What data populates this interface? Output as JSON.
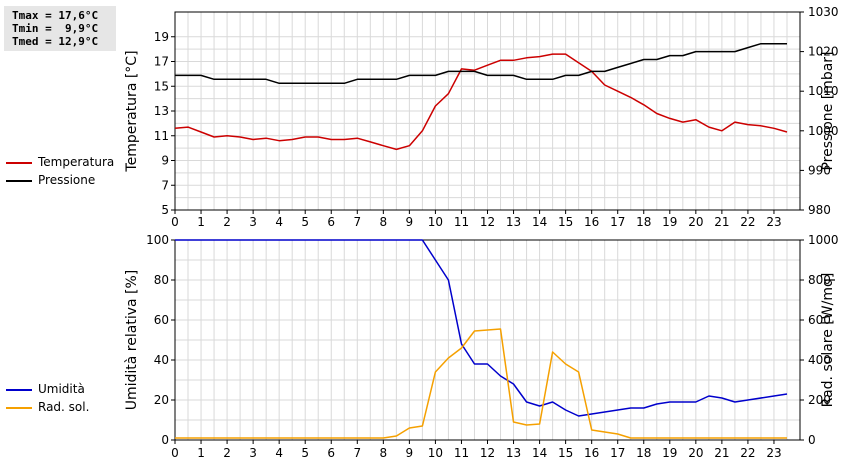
{
  "stats": [
    {
      "label": "Tmax",
      "value": "17,6°C"
    },
    {
      "label": "Tmin",
      "value": " 9,9°C"
    },
    {
      "label": "Tmed",
      "value": "12,9°C"
    }
  ],
  "legend_top": [
    {
      "name": "Temperatura",
      "color": "#cc0000"
    },
    {
      "name": "Pressione",
      "color": "#000000"
    }
  ],
  "legend_bottom": [
    {
      "name": "Umidità",
      "color": "#0000cc"
    },
    {
      "name": "Rad. sol.",
      "color": "#f5a000"
    }
  ],
  "chart_data": [
    {
      "type": "line",
      "xlim": [
        0,
        24
      ],
      "xticks": [
        "0",
        "1",
        "2",
        "3",
        "4",
        "5",
        "6",
        "7",
        "8",
        "9",
        "10",
        "11",
        "12",
        "13",
        "14",
        "15",
        "16",
        "17",
        "18",
        "19",
        "20",
        "21",
        "22",
        "23"
      ],
      "ylabel": "Temperatura [°C]",
      "ylim": [
        5,
        21
      ],
      "yticks": [
        "5",
        "7",
        "9",
        "11",
        "13",
        "15",
        "17",
        "19"
      ],
      "y2label": "Pressione [mbar]",
      "y2lim": [
        980,
        1030
      ],
      "y2ticks": [
        "980",
        "990",
        "1000",
        "1010",
        "1020",
        "1030"
      ],
      "grid": true,
      "legend": "left",
      "series": [
        {
          "name": "Temperatura",
          "color": "#cc0000",
          "axis": "left",
          "x": [
            0,
            0.5,
            1,
            1.5,
            2,
            2.5,
            3,
            3.5,
            4,
            4.5,
            5,
            5.5,
            6,
            6.5,
            7,
            7.5,
            8,
            8.5,
            9,
            9.5,
            10,
            10.5,
            11,
            11.5,
            12,
            12.5,
            13,
            13.5,
            14,
            14.5,
            15,
            15.5,
            16,
            16.5,
            17,
            17.5,
            18,
            18.5,
            19,
            19.5,
            20,
            20.5,
            21,
            21.5,
            22,
            22.5,
            23,
            23.5
          ],
          "y": [
            11.6,
            11.7,
            11.3,
            10.9,
            11.0,
            10.9,
            10.7,
            10.8,
            10.6,
            10.7,
            10.9,
            10.9,
            10.7,
            10.7,
            10.8,
            10.5,
            10.2,
            9.9,
            10.2,
            11.4,
            13.4,
            14.4,
            16.4,
            16.3,
            16.7,
            17.1,
            17.1,
            17.3,
            17.4,
            17.6,
            17.6,
            16.9,
            16.2,
            15.1,
            14.6,
            14.1,
            13.5,
            12.8,
            12.4,
            12.1,
            12.3,
            11.7,
            11.4,
            12.1,
            11.9,
            11.8,
            11.6,
            11.3
          ]
        },
        {
          "name": "Pressione",
          "color": "#000000",
          "axis": "right",
          "x": [
            0,
            1,
            1.5,
            2,
            3,
            3.5,
            4,
            5,
            6,
            6.5,
            7,
            8,
            8.5,
            9,
            10,
            10.5,
            11,
            11.5,
            12,
            13,
            13.5,
            14,
            14.5,
            15,
            15.5,
            16,
            16.5,
            17,
            17.5,
            18,
            18.5,
            19,
            19.5,
            20,
            20.5,
            21,
            21.5,
            22,
            22.5,
            23,
            23.5
          ],
          "y": [
            1014,
            1014,
            1013,
            1013,
            1013,
            1013,
            1012,
            1012,
            1012,
            1012,
            1013,
            1013,
            1013,
            1014,
            1014,
            1015,
            1015,
            1015,
            1014,
            1014,
            1013,
            1013,
            1013,
            1014,
            1014,
            1015,
            1015,
            1016,
            1017,
            1018,
            1018,
            1019,
            1019,
            1020,
            1020,
            1020,
            1020,
            1021,
            1022,
            1022,
            1022
          ]
        }
      ]
    },
    {
      "type": "line",
      "xlim": [
        0,
        24
      ],
      "xticks": [
        "0",
        "1",
        "2",
        "3",
        "4",
        "5",
        "6",
        "7",
        "8",
        "9",
        "10",
        "11",
        "12",
        "13",
        "14",
        "15",
        "16",
        "17",
        "18",
        "19",
        "20",
        "21",
        "22",
        "23"
      ],
      "ylabel": "Umidità relativa [%]",
      "ylim": [
        0,
        100
      ],
      "yticks": [
        "0",
        "20",
        "40",
        "60",
        "80",
        "100"
      ],
      "y2label": "Rad. solare [W/mq]",
      "y2lim": [
        0,
        1000
      ],
      "y2ticks": [
        "0",
        "200",
        "400",
        "600",
        "800",
        "1000"
      ],
      "grid": true,
      "legend": "left",
      "series": [
        {
          "name": "Umidità",
          "color": "#0000cc",
          "axis": "left",
          "x": [
            0,
            1,
            2,
            3,
            4,
            5,
            6,
            7,
            8,
            9,
            9.5,
            10,
            10.5,
            11,
            11.5,
            12,
            12.5,
            13,
            13.5,
            14,
            14.5,
            15,
            15.5,
            16,
            17,
            17.5,
            18,
            18.5,
            19,
            20,
            20.5,
            21,
            21.5,
            22,
            23,
            23.5
          ],
          "y": [
            100,
            100,
            100,
            100,
            100,
            100,
            100,
            100,
            100,
            100,
            100,
            90,
            80,
            48,
            38,
            38,
            32,
            28,
            19,
            17,
            19,
            15,
            12,
            13,
            15,
            16,
            16,
            18,
            19,
            19,
            22,
            21,
            19,
            20,
            22,
            23
          ]
        },
        {
          "name": "Rad. sol.",
          "color": "#f5a000",
          "axis": "right",
          "x": [
            0,
            1,
            2,
            3,
            4,
            5,
            6,
            7,
            8,
            8.5,
            9,
            9.5,
            10,
            10.5,
            11,
            11.5,
            12,
            12.5,
            13,
            13.5,
            14,
            14.5,
            15,
            15.5,
            16,
            16.5,
            17,
            17.5,
            18,
            19,
            20,
            21,
            22,
            23,
            23.5
          ],
          "y": [
            10,
            10,
            10,
            10,
            10,
            10,
            10,
            10,
            10,
            20,
            60,
            70,
            340,
            410,
            460,
            545,
            550,
            555,
            90,
            75,
            80,
            440,
            380,
            340,
            50,
            40,
            30,
            10,
            10,
            10,
            10,
            10,
            10,
            10,
            10
          ]
        }
      ]
    }
  ]
}
